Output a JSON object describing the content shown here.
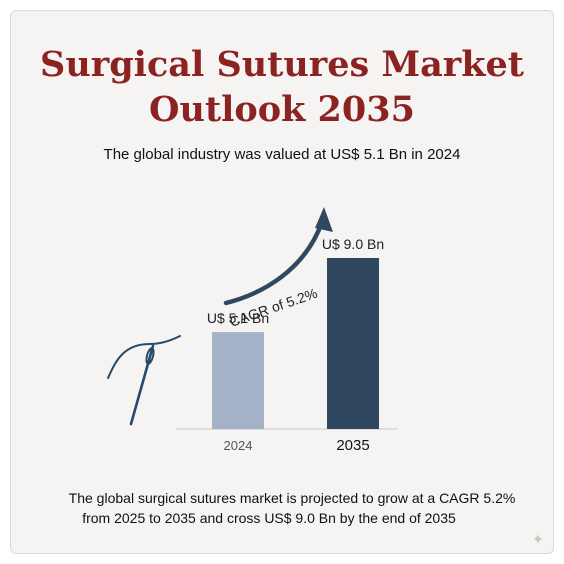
{
  "title_line1": "Surgical Sutures Market",
  "title_line2": "Outlook 2035",
  "subtitle": "The global industry was valued at US$ 5.1 Bn in 2024",
  "footer_line1": "The global surgical sutures market is projected to grow at a CAGR 5.2%",
  "footer_line2": "from      2025 to 2035 and cross US$ 9.0 Bn by the end of 2035",
  "colors": {
    "title": "#8b2323",
    "bar_2024": "#a3b2c6",
    "bar_2035": "#2f4860",
    "arrow": "#2f4860",
    "needle": "#264a6e"
  },
  "icons": [
    "suture-needle-icon",
    "growth-arrow-icon",
    "sparkle-icon"
  ],
  "chart_data": {
    "type": "bar",
    "categories": [
      "2024",
      "2035"
    ],
    "values": [
      5.1,
      9.0
    ],
    "value_labels": [
      "U$ 5.1 Bn",
      "U$ 9.0 Bn"
    ],
    "unit": "US$ Bn",
    "annotation": "CAGR of 5.2%",
    "grid": false,
    "legend": "none"
  }
}
